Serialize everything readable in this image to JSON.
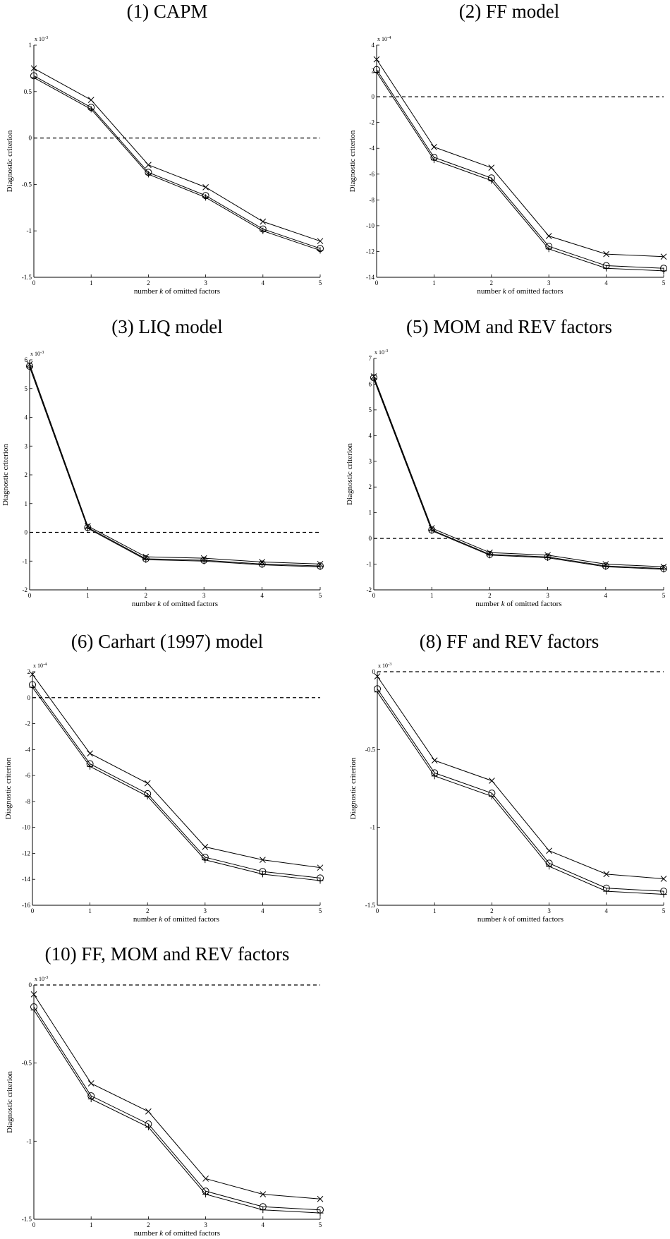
{
  "figure": {
    "panels": [
      {
        "id": "capm",
        "title": "(1) CAPM",
        "exponent": "x 10",
        "exponent_power": "-3",
        "ylabel": "Diagnostic criterion",
        "xlabel_prefix": "number ",
        "xlabel_var": "k",
        "xlabel_suffix": " of omitted factors"
      },
      {
        "id": "ff",
        "title": "(2) FF model",
        "exponent": "x 10",
        "exponent_power": "-4",
        "ylabel": "Diagnostic criterion",
        "xlabel_prefix": "number ",
        "xlabel_var": "k",
        "xlabel_suffix": " of omitted factors"
      },
      {
        "id": "liq",
        "title": "(3) LIQ model",
        "exponent": "x 10",
        "exponent_power": "-3",
        "ylabel": "Diagnostic criterion",
        "xlabel_prefix": "number ",
        "xlabel_var": "k",
        "xlabel_suffix": " of omitted factors"
      },
      {
        "id": "momrev",
        "title": "(5) MOM and REV factors",
        "exponent": "x 10",
        "exponent_power": "-3",
        "ylabel": "Diagnostic criterion",
        "xlabel_prefix": "number ",
        "xlabel_var": "k",
        "xlabel_suffix": " of omitted factors"
      },
      {
        "id": "carhart",
        "title": "(6) Carhart (1997) model",
        "exponent": "x 10",
        "exponent_power": "-4",
        "ylabel": "Diagnostic criterion",
        "xlabel_prefix": "number ",
        "xlabel_var": "k",
        "xlabel_suffix": " of omitted factors"
      },
      {
        "id": "ffrev",
        "title": "(8) FF and REV factors",
        "exponent": "x 10",
        "exponent_power": "-3",
        "ylabel": "Diagnostic criterion",
        "xlabel_prefix": "number ",
        "xlabel_var": "k",
        "xlabel_suffix": " of omitted factors"
      },
      {
        "id": "ffmomrev",
        "title": "(10) FF, MOM and REV factors",
        "exponent": "x 10",
        "exponent_power": "-3",
        "ylabel": "Diagnostic criterion",
        "xlabel_prefix": "number ",
        "xlabel_var": "k",
        "xlabel_suffix": " of omitted factors"
      }
    ]
  },
  "chart_data": [
    {
      "type": "line",
      "title": "(1) CAPM",
      "xlabel": "number k of omitted factors",
      "ylabel": "Diagnostic criterion",
      "x": [
        0,
        1,
        2,
        3,
        4,
        5
      ],
      "xlim": [
        0,
        5
      ],
      "ylim": [
        -1.5,
        1
      ],
      "yticks": [
        -1.5,
        -1,
        -0.5,
        0,
        0.5,
        1
      ],
      "ytick_labels": [
        "-1.5",
        "-1",
        "-0.5",
        "0",
        "0.5",
        "1"
      ],
      "y_scale_note": "x 10^-3",
      "reference_line": 0,
      "series": [
        {
          "marker": "x",
          "values": [
            0.75,
            0.41,
            -0.29,
            -0.53,
            -0.9,
            -1.11
          ]
        },
        {
          "marker": "o",
          "values": [
            0.67,
            0.33,
            -0.37,
            -0.62,
            -0.98,
            -1.19
          ]
        },
        {
          "marker": "+",
          "values": [
            0.65,
            0.31,
            -0.39,
            -0.64,
            -1.0,
            -1.21
          ]
        }
      ]
    },
    {
      "type": "line",
      "title": "(2) FF model",
      "xlabel": "number k of omitted factors",
      "ylabel": "Diagnostic criterion",
      "x": [
        0,
        1,
        2,
        3,
        4,
        5
      ],
      "xlim": [
        0,
        5
      ],
      "ylim": [
        -14,
        4
      ],
      "yticks": [
        -14,
        -12,
        -10,
        -8,
        -6,
        -4,
        -2,
        0,
        2,
        4
      ],
      "ytick_labels": [
        "-14",
        "-12",
        "-10",
        "-8",
        "-6",
        "-4",
        "-2",
        "0",
        "2",
        "4"
      ],
      "y_scale_note": "x 10^-4",
      "reference_line": 0,
      "series": [
        {
          "marker": "x",
          "values": [
            2.9,
            -3.9,
            -5.5,
            -10.8,
            -12.2,
            -12.4
          ]
        },
        {
          "marker": "o",
          "values": [
            2.1,
            -4.7,
            -6.3,
            -11.6,
            -13.1,
            -13.3
          ]
        },
        {
          "marker": "+",
          "values": [
            1.9,
            -4.9,
            -6.5,
            -11.8,
            -13.3,
            -13.5
          ]
        }
      ]
    },
    {
      "type": "line",
      "title": "(3) LIQ model",
      "xlabel": "number k of omitted factors",
      "ylabel": "Diagnostic criterion",
      "x": [
        0,
        1,
        2,
        3,
        4,
        5
      ],
      "xlim": [
        0,
        5
      ],
      "ylim": [
        -2,
        6
      ],
      "yticks": [
        -2,
        -1,
        0,
        1,
        2,
        3,
        4,
        5,
        6
      ],
      "ytick_labels": [
        "-2",
        "-1",
        "0",
        "1",
        "2",
        "3",
        "4",
        "5",
        "6"
      ],
      "y_scale_note": "x 10^-3",
      "reference_line": 0,
      "series": [
        {
          "marker": "x",
          "values": [
            5.85,
            0.22,
            -0.85,
            -0.9,
            -1.03,
            -1.1
          ]
        },
        {
          "marker": "o",
          "values": [
            5.78,
            0.17,
            -0.92,
            -0.97,
            -1.1,
            -1.17
          ]
        },
        {
          "marker": "+",
          "values": [
            5.75,
            0.14,
            -0.95,
            -1.0,
            -1.13,
            -1.2
          ]
        }
      ]
    },
    {
      "type": "line",
      "title": "(5) MOM and REV factors",
      "xlabel": "number k of omitted factors",
      "ylabel": "Diagnostic criterion",
      "x": [
        0,
        1,
        2,
        3,
        4,
        5
      ],
      "xlim": [
        0,
        5
      ],
      "ylim": [
        -2,
        7
      ],
      "yticks": [
        -2,
        -1,
        0,
        1,
        2,
        3,
        4,
        5,
        6,
        7
      ],
      "ytick_labels": [
        "-2",
        "-1",
        "0",
        "1",
        "2",
        "3",
        "4",
        "5",
        "6",
        "7"
      ],
      "y_scale_note": "x 10^-3",
      "reference_line": 0,
      "series": [
        {
          "marker": "x",
          "values": [
            6.3,
            0.4,
            -0.55,
            -0.65,
            -1.0,
            -1.1
          ]
        },
        {
          "marker": "o",
          "values": [
            6.25,
            0.33,
            -0.62,
            -0.72,
            -1.07,
            -1.17
          ]
        },
        {
          "marker": "+",
          "values": [
            6.2,
            0.3,
            -0.65,
            -0.75,
            -1.1,
            -1.2
          ]
        }
      ]
    },
    {
      "type": "line",
      "title": "(6) Carhart (1997) model",
      "xlabel": "number k of omitted factors",
      "ylabel": "Diagnostic criterion",
      "x": [
        0,
        1,
        2,
        3,
        4,
        5
      ],
      "xlim": [
        0,
        5
      ],
      "ylim": [
        -16,
        2
      ],
      "yticks": [
        -16,
        -14,
        -12,
        -10,
        -8,
        -6,
        -4,
        -2,
        0,
        2
      ],
      "ytick_labels": [
        "-16",
        "-14",
        "-12",
        "-10",
        "-8",
        "-6",
        "-4",
        "-2",
        "0",
        "2"
      ],
      "y_scale_note": "x 10^-4",
      "reference_line": 0,
      "series": [
        {
          "marker": "x",
          "values": [
            1.8,
            -4.3,
            -6.6,
            -11.5,
            -12.5,
            -13.1
          ]
        },
        {
          "marker": "o",
          "values": [
            1.0,
            -5.1,
            -7.4,
            -12.3,
            -13.4,
            -13.9
          ]
        },
        {
          "marker": "+",
          "values": [
            0.8,
            -5.3,
            -7.6,
            -12.5,
            -13.6,
            -14.1
          ]
        }
      ]
    },
    {
      "type": "line",
      "title": "(8) FF and REV factors",
      "xlabel": "number k of omitted factors",
      "ylabel": "Diagnostic criterion",
      "x": [
        0,
        1,
        2,
        3,
        4,
        5
      ],
      "xlim": [
        0,
        5
      ],
      "ylim": [
        -1.5,
        0
      ],
      "yticks": [
        -1.5,
        -1,
        -0.5,
        0
      ],
      "ytick_labels": [
        "-1.5",
        "-1",
        "-0.5",
        "0"
      ],
      "y_scale_note": "x 10^-3",
      "reference_line": 0,
      "series": [
        {
          "marker": "x",
          "values": [
            -0.03,
            -0.57,
            -0.7,
            -1.15,
            -1.3,
            -1.33
          ]
        },
        {
          "marker": "o",
          "values": [
            -0.11,
            -0.65,
            -0.78,
            -1.23,
            -1.39,
            -1.41
          ]
        },
        {
          "marker": "+",
          "values": [
            -0.13,
            -0.67,
            -0.8,
            -1.25,
            -1.41,
            -1.43
          ]
        }
      ]
    },
    {
      "type": "line",
      "title": "(10) FF, MOM and REV factors",
      "xlabel": "number k of omitted factors",
      "ylabel": "Diagnostic criterion",
      "x": [
        0,
        1,
        2,
        3,
        4,
        5
      ],
      "xlim": [
        0,
        5
      ],
      "ylim": [
        -1.5,
        0
      ],
      "yticks": [
        -1.5,
        -1,
        -0.5,
        0
      ],
      "ytick_labels": [
        "-1.5",
        "-1",
        "-0.5",
        "0"
      ],
      "y_scale_note": "x 10^-3",
      "reference_line": 0,
      "series": [
        {
          "marker": "x",
          "values": [
            -0.06,
            -0.63,
            -0.81,
            -1.24,
            -1.34,
            -1.37
          ]
        },
        {
          "marker": "o",
          "values": [
            -0.14,
            -0.71,
            -0.89,
            -1.32,
            -1.42,
            -1.44
          ]
        },
        {
          "marker": "+",
          "values": [
            -0.16,
            -0.73,
            -0.91,
            -1.34,
            -1.44,
            -1.46
          ]
        }
      ]
    }
  ]
}
